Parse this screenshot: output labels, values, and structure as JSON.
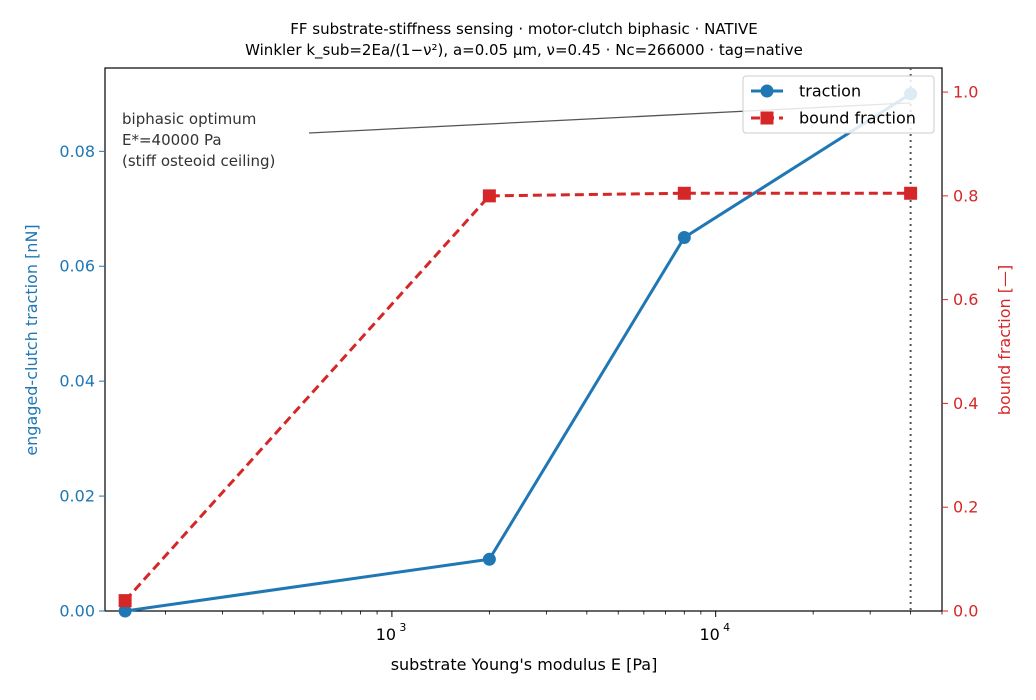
{
  "chart_data": {
    "type": "line",
    "title_line1": "FF substrate-stiffness sensing  ·  motor-clutch biphasic  ·  NATIVE",
    "title_line2": "Winkler k_sub=2Ea/(1−ν²), a=0.05 µm, ν=0.45  ·  Nc=266000  ·  tag=native",
    "xlabel": "substrate Young's modulus  E  [Pa]",
    "ylabel_left": "engaged-clutch traction  [nN]",
    "ylabel_right": "bound fraction  [—]",
    "x_scale": "log",
    "xlim": [
      130,
      50000
    ],
    "ylim_left": [
      0,
      0.0945
    ],
    "ylim_right": [
      0,
      1.0464
    ],
    "x_ticks": [
      {
        "value": 1000,
        "base": "10",
        "exp": "3"
      },
      {
        "value": 10000,
        "base": "10",
        "exp": "4"
      }
    ],
    "y_ticks_left": [
      {
        "value": 0,
        "label": "0.00"
      },
      {
        "value": 0.02,
        "label": "0.02"
      },
      {
        "value": 0.04,
        "label": "0.04"
      },
      {
        "value": 0.06,
        "label": "0.06"
      },
      {
        "value": 0.08,
        "label": "0.08"
      }
    ],
    "y_ticks_right": [
      {
        "value": 0,
        "label": "0.0"
      },
      {
        "value": 0.2,
        "label": "0.2"
      },
      {
        "value": 0.4,
        "label": "0.4"
      },
      {
        "value": 0.6,
        "label": "0.6"
      },
      {
        "value": 0.8,
        "label": "0.8"
      },
      {
        "value": 1.0,
        "label": "1.0"
      }
    ],
    "series": [
      {
        "name": "traction",
        "axis": "left",
        "color": "#1f77b4",
        "marker": "circle",
        "linestyle": "solid",
        "x": [
          150,
          2000,
          8000,
          40000
        ],
        "y": [
          0.0,
          0.009,
          0.065,
          0.09
        ]
      },
      {
        "name": "bound fraction",
        "axis": "right",
        "color": "#d62728",
        "marker": "square",
        "linestyle": "dashed",
        "x": [
          150,
          2000,
          8000,
          40000
        ],
        "y": [
          0.02,
          0.8,
          0.805,
          0.805
        ]
      }
    ],
    "vline": {
      "x": 40000,
      "color": "#555555",
      "style": "dotted"
    },
    "annotation": {
      "lines": [
        "biphasic optimum",
        "E*=40000 Pa",
        "(stiff osteoid ceiling)"
      ],
      "arrow_to": {
        "x": 40000,
        "y": 0.09
      }
    },
    "legend": {
      "position": "top-right"
    },
    "grid": false
  }
}
